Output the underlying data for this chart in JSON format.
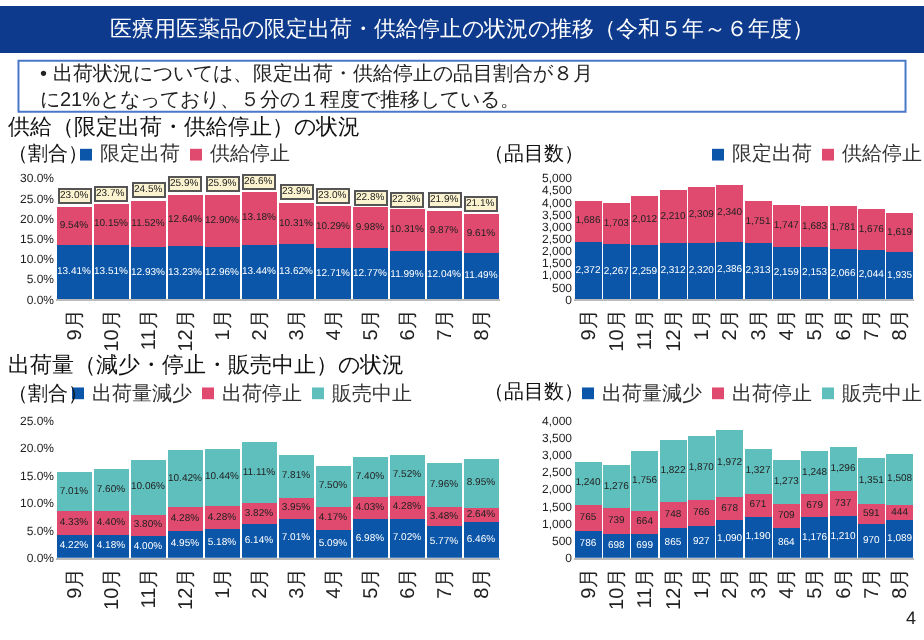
{
  "chart_data": [
    {
      "type": "other",
      "title": "医療用医薬品の限定出荷・供給停止の状況の推移（令和５年～６年度）",
      "annotations": [
        "• 出荷状況については、限定出荷・供給停止の品目割合が８月に21%となっており、５分の１程度で推移している。",
        "4"
      ]
    },
    {
      "type": "bar",
      "stacked": true,
      "title": "供給（限定出荷・供給停止）の状況",
      "ylabel": "（割合）",
      "legend": "top",
      "categories": [
        "9月",
        "10月",
        "11月",
        "12月",
        "1月",
        "2月",
        "3月",
        "4月",
        "5月",
        "6月",
        "7月",
        "8月"
      ],
      "ylim": [
        0,
        30
      ],
      "yticks": [
        {
          "value": 0,
          "label": "0.0%"
        },
        {
          "value": 5,
          "label": "5.0%"
        },
        {
          "value": 10,
          "label": "10.0%"
        },
        {
          "value": 15,
          "label": "15.0%"
        },
        {
          "value": 20,
          "label": "20.0%"
        },
        {
          "value": 25,
          "label": "25.0%"
        },
        {
          "value": 30,
          "label": "30.0%"
        }
      ],
      "series": [
        {
          "name": "限定出荷",
          "color": "#0b56a8",
          "values": [
            13.41,
            13.51,
            12.93,
            13.23,
            12.96,
            13.44,
            13.62,
            12.71,
            12.77,
            11.99,
            12.04,
            11.49
          ],
          "value_labels": [
            "13.41%",
            "13.51%",
            "12.93%",
            "13.23%",
            "12.96%",
            "13.44%",
            "13.62%",
            "12.71%",
            "12.77%",
            "11.99%",
            "12.04%",
            "11.49%"
          ]
        },
        {
          "name": "供給停止",
          "color": "#e04a6e",
          "values": [
            9.54,
            10.15,
            11.52,
            12.64,
            12.9,
            13.18,
            10.31,
            10.29,
            9.98,
            10.31,
            9.87,
            9.61
          ],
          "value_labels": [
            "9.54%",
            "10.15%",
            "11.52%",
            "12.64%",
            "12.90%",
            "13.18%",
            "10.31%",
            "10.29%",
            "9.98%",
            "10.31%",
            "9.87%",
            "9.61%"
          ]
        }
      ],
      "totals": [
        "23.0%",
        "23.7%",
        "24.5%",
        "25.9%",
        "25.9%",
        "26.6%",
        "23.9%",
        "23.0%",
        "22.8%",
        "22.3%",
        "21.9%",
        "21.1%"
      ]
    },
    {
      "type": "bar",
      "stacked": true,
      "ylabel": "（品目数）",
      "legend": "top",
      "categories": [
        "9月",
        "10月",
        "11月",
        "12月",
        "1月",
        "2月",
        "3月",
        "4月",
        "5月",
        "6月",
        "7月",
        "8月"
      ],
      "ylim": [
        0,
        5000
      ],
      "yticks": [
        0,
        500,
        {
          "value": 1000,
          "label": "1,000"
        },
        {
          "value": 1500,
          "label": "1,500"
        },
        {
          "value": 2000,
          "label": "2,000"
        },
        {
          "value": 2500,
          "label": "2,500"
        },
        {
          "value": 3000,
          "label": "3,000"
        },
        {
          "value": 3500,
          "label": "3,500"
        },
        {
          "value": 4000,
          "label": "4,000"
        },
        {
          "value": 4500,
          "label": "4,500"
        },
        {
          "value": 5000,
          "label": "5,000"
        }
      ],
      "series": [
        {
          "name": "限定出荷",
          "color": "#0b56a8",
          "values": [
            2372,
            2267,
            2259,
            2312,
            2320,
            2386,
            2313,
            2159,
            2153,
            2066,
            2044,
            1935
          ],
          "value_labels": [
            "2,372",
            "2,267",
            "2,259",
            "2,312",
            "2,320",
            "2,386",
            "2,313",
            "2,159",
            "2,153",
            "2,066",
            "2,044",
            "1,935"
          ]
        },
        {
          "name": "供給停止",
          "color": "#e04a6e",
          "values": [
            1686,
            1703,
            2012,
            2210,
            2309,
            2340,
            1751,
            1747,
            1683,
            1781,
            1676,
            1619
          ],
          "value_labels": [
            "1,686",
            "1,703",
            "2,012",
            "2,210",
            "2,309",
            "2,340",
            "1,751",
            "1,747",
            "1,683",
            "1,781",
            "1,676",
            "1,619"
          ]
        }
      ]
    },
    {
      "type": "bar",
      "stacked": true,
      "title": "出荷量（減少・停止・販売中止）の状況",
      "ylabel": "（割合）",
      "legend": "top",
      "categories": [
        "9月",
        "10月",
        "11月",
        "12月",
        "1月",
        "2月",
        "3月",
        "4月",
        "5月",
        "6月",
        "7月",
        "8月"
      ],
      "ylim": [
        0,
        25
      ],
      "yticks": [
        {
          "value": 0,
          "label": "0.0%"
        },
        {
          "value": 5,
          "label": "5.0%"
        },
        {
          "value": 10,
          "label": "10.0%"
        },
        {
          "value": 15,
          "label": "15.0%"
        },
        {
          "value": 20,
          "label": "20.0%"
        },
        {
          "value": 25,
          "label": "25.0%"
        }
      ],
      "series": [
        {
          "name": "出荷量減少",
          "color": "#0b56a8",
          "values": [
            4.22,
            4.18,
            4.0,
            4.95,
            5.18,
            6.14,
            7.01,
            5.09,
            6.98,
            7.02,
            5.77,
            6.46
          ],
          "value_labels": [
            "4.22%",
            "4.18%",
            "4.00%",
            "4.95%",
            "5.18%",
            "6.14%",
            "7.01%",
            "5.09%",
            "6.98%",
            "7.02%",
            "5.77%",
            "6.46%"
          ]
        },
        {
          "name": "出荷停止",
          "color": "#e04a6e",
          "values": [
            4.33,
            4.4,
            3.8,
            4.28,
            4.28,
            3.82,
            3.95,
            4.17,
            4.03,
            4.28,
            3.48,
            2.64
          ],
          "value_labels": [
            "4.33%",
            "4.40%",
            "3.80%",
            "4.28%",
            "4.28%",
            "3.82%",
            "3.95%",
            "4.17%",
            "4.03%",
            "4.28%",
            "3.48%",
            "2.64%"
          ]
        },
        {
          "name": "販売中止",
          "color": "#5fbfbd",
          "values": [
            7.01,
            7.6,
            10.06,
            10.42,
            10.44,
            11.11,
            7.81,
            7.5,
            7.4,
            7.52,
            7.96,
            8.95
          ],
          "value_labels": [
            "7.01%",
            "7.60%",
            "10.06%",
            "10.42%",
            "10.44%",
            "11.11%",
            "7.81%",
            "7.50%",
            "7.40%",
            "7.52%",
            "7.96%",
            "8.95%"
          ]
        }
      ]
    },
    {
      "type": "bar",
      "stacked": true,
      "ylabel": "（品目数）",
      "legend": "top",
      "categories": [
        "9月",
        "10月",
        "11月",
        "12月",
        "1月",
        "2月",
        "3月",
        "4月",
        "5月",
        "6月",
        "7月",
        "8月"
      ],
      "ylim": [
        0,
        4000
      ],
      "yticks": [
        0,
        500,
        {
          "value": 1000,
          "label": "1,000"
        },
        {
          "value": 1500,
          "label": "1,500"
        },
        {
          "value": 2000,
          "label": "2,000"
        },
        {
          "value": 2500,
          "label": "2,500"
        },
        {
          "value": 3000,
          "label": "3,000"
        },
        {
          "value": 3500,
          "label": "3,500"
        },
        {
          "value": 4000,
          "label": "4,000"
        }
      ],
      "series": [
        {
          "name": "出荷量減少",
          "color": "#0b56a8",
          "values": [
            786,
            698,
            699,
            865,
            927,
            1090,
            1190,
            864,
            1176,
            1210,
            970,
            1089
          ],
          "value_labels": [
            "786",
            "698",
            "699",
            "865",
            "927",
            "1,090",
            "1,190",
            "864",
            "1,176",
            "1,210",
            "970",
            "1,089"
          ]
        },
        {
          "name": "出荷停止",
          "color": "#e04a6e",
          "values": [
            765,
            739,
            664,
            748,
            766,
            678,
            671,
            709,
            679,
            737,
            591,
            444
          ],
          "value_labels": [
            "765",
            "739",
            "664",
            "748",
            "766",
            "678",
            "671",
            "709",
            "679",
            "737",
            "591",
            "444"
          ]
        },
        {
          "name": "販売中止",
          "color": "#5fbfbd",
          "values": [
            1240,
            1276,
            1756,
            1822,
            1870,
            1972,
            1327,
            1273,
            1248,
            1296,
            1351,
            1508
          ],
          "value_labels": [
            "1,240",
            "1,276",
            "1,756",
            "1,822",
            "1,870",
            "1,972",
            "1,327",
            "1,273",
            "1,248",
            "1,296",
            "1,351",
            "1,508"
          ]
        }
      ]
    }
  ]
}
